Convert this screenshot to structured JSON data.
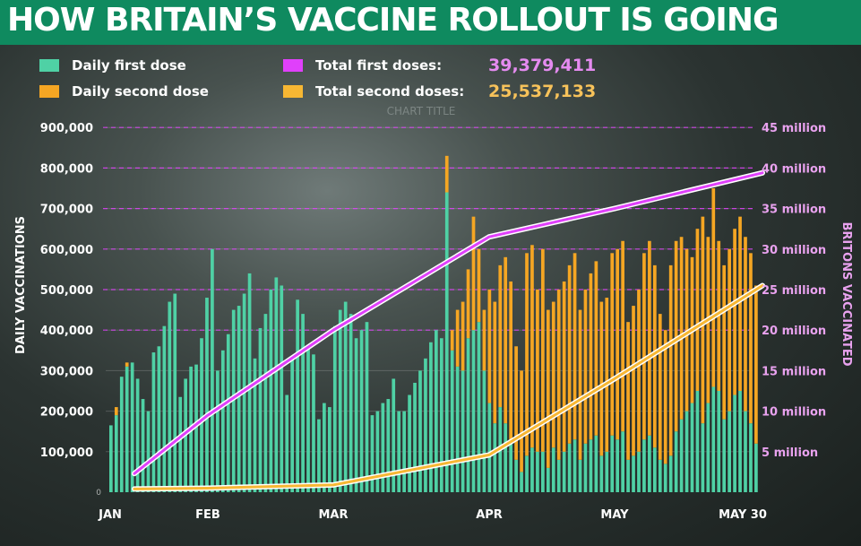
{
  "title": "HOW BRITAIN’S VACCINE ROLLOUT IS GOING",
  "colors": {
    "banner": "#0f8a5f",
    "daily_first": "#4fd1a5",
    "daily_second": "#f5a623",
    "total_first": "#e040fb",
    "total_second": "#f7b733",
    "total_first_text": "#e58bf0",
    "total_second_text": "#f7c25a",
    "right_axis_text": "#e9a2ef"
  },
  "legend": {
    "daily_first": "Daily first dose",
    "daily_second": "Daily second dose",
    "total_first": "Total first doses:",
    "total_second": "Total second doses:",
    "total_first_value": "39,379,411",
    "total_second_value": "25,537,133"
  },
  "watermark": "CHART TITLE",
  "chart_data": {
    "type": "bar",
    "title": "HOW BRITAIN’S VACCINE ROLLOUT IS GOING",
    "x_labels": [
      "JAN",
      "FEB",
      "MAR",
      "APR",
      "MAY",
      "MAY 30"
    ],
    "ylabel": "DAILY VACCINATIONS",
    "y2label": "BRITONS VACCINATED",
    "y_ticks": [
      "100,000",
      "200,000",
      "300,000",
      "400,000",
      "500,000",
      "600,000",
      "700,000",
      "800,000",
      "900,000"
    ],
    "y2_ticks": [
      "5 million",
      "10 million",
      "15 million",
      "20 million",
      "25 million",
      "30 million",
      "35 million",
      "40 million",
      "45 million"
    ],
    "ylim": [
      0,
      1000000
    ],
    "y2lim": [
      0,
      50000000
    ],
    "grid": true,
    "legend_position": "top-left",
    "daily_first_dose": [
      165000,
      190000,
      285000,
      310000,
      320000,
      280000,
      230000,
      200000,
      345000,
      360000,
      410000,
      470000,
      490000,
      235000,
      280000,
      310000,
      315000,
      380000,
      480000,
      600000,
      300000,
      350000,
      390000,
      450000,
      460000,
      490000,
      540000,
      330000,
      405000,
      440000,
      500000,
      530000,
      510000,
      240000,
      335000,
      475000,
      440000,
      360000,
      340000,
      180000,
      220000,
      210000,
      410000,
      450000,
      470000,
      440000,
      380000,
      400000,
      420000,
      190000,
      200000,
      220000,
      230000,
      280000,
      200000,
      200000,
      240000,
      270000,
      300000,
      330000,
      370000,
      400000,
      380000,
      740000,
      350000,
      310000,
      300000,
      380000,
      400000,
      420000,
      300000,
      220000,
      170000,
      210000,
      170000,
      120000,
      80000,
      50000,
      90000,
      110000,
      100000,
      100000,
      60000,
      110000,
      80000,
      100000,
      120000,
      130000,
      80000,
      120000,
      130000,
      140000,
      90000,
      100000,
      140000,
      130000,
      150000,
      80000,
      90000,
      100000,
      130000,
      140000,
      110000,
      80000,
      70000,
      90000,
      150000,
      180000,
      200000,
      220000,
      250000,
      170000,
      220000,
      260000,
      250000,
      180000,
      200000,
      240000,
      250000,
      200000,
      170000,
      120000
    ],
    "daily_second_dose": [
      0,
      20000,
      0,
      10000,
      0,
      0,
      0,
      0,
      0,
      0,
      0,
      0,
      0,
      0,
      0,
      0,
      0,
      0,
      0,
      0,
      0,
      0,
      0,
      0,
      0,
      0,
      0,
      0,
      0,
      0,
      0,
      0,
      0,
      0,
      0,
      0,
      0,
      0,
      0,
      0,
      0,
      0,
      0,
      0,
      0,
      0,
      0,
      0,
      0,
      0,
      0,
      0,
      0,
      0,
      0,
      0,
      0,
      0,
      0,
      0,
      0,
      0,
      0,
      0,
      0,
      0,
      0,
      0,
      0,
      0,
      0,
      0,
      0,
      0,
      0,
      0,
      0,
      0,
      0,
      0,
      0,
      0,
      0,
      0,
      0,
      0,
      0,
      0,
      0,
      0,
      0,
      0,
      0,
      0,
      0,
      0,
      0,
      0,
      0,
      0,
      0,
      0,
      0,
      0,
      0,
      0,
      0,
      0,
      0,
      0,
      0,
      0,
      0,
      0,
      0,
      0,
      0,
      0,
      0,
      0,
      0,
      0
    ],
    "daily_total": [
      165000,
      210000,
      285000,
      320000,
      320000,
      280000,
      230000,
      200000,
      345000,
      360000,
      410000,
      470000,
      490000,
      235000,
      280000,
      310000,
      315000,
      380000,
      480000,
      600000,
      300000,
      350000,
      390000,
      450000,
      460000,
      490000,
      540000,
      330000,
      405000,
      440000,
      500000,
      530000,
      510000,
      240000,
      335000,
      475000,
      440000,
      360000,
      340000,
      180000,
      220000,
      210000,
      410000,
      450000,
      470000,
      440000,
      380000,
      400000,
      420000,
      190000,
      200000,
      220000,
      230000,
      280000,
      200000,
      200000,
      240000,
      270000,
      300000,
      330000,
      370000,
      400000,
      380000,
      830000,
      400000,
      450000,
      470000,
      550000,
      680000,
      600000,
      450000,
      500000,
      470000,
      560000,
      580000,
      520000,
      360000,
      300000,
      590000,
      610000,
      500000,
      600000,
      450000,
      470000,
      500000,
      520000,
      560000,
      590000,
      450000,
      500000,
      540000,
      570000,
      470000,
      480000,
      590000,
      600000,
      620000,
      420000,
      460000,
      500000,
      590000,
      620000,
      560000,
      440000,
      400000,
      560000,
      620000,
      630000,
      600000,
      580000,
      650000,
      680000,
      630000,
      750000,
      620000,
      560000,
      600000,
      650000,
      680000,
      630000,
      590000,
      510000
    ],
    "total_first_doses_millions_monthly": {
      "x": [
        "JAN",
        "FEB",
        "MAR",
        "APR",
        "MAY",
        "MAY 30"
      ],
      "values": [
        2.3,
        9.5,
        20.0,
        31.5,
        35.0,
        39.4
      ]
    },
    "total_second_doses_millions_monthly": {
      "x": [
        "JAN",
        "FEB",
        "MAR",
        "APR",
        "MAY",
        "MAY 30"
      ],
      "values": [
        0.4,
        0.5,
        0.9,
        4.6,
        14.0,
        25.5
      ]
    }
  }
}
